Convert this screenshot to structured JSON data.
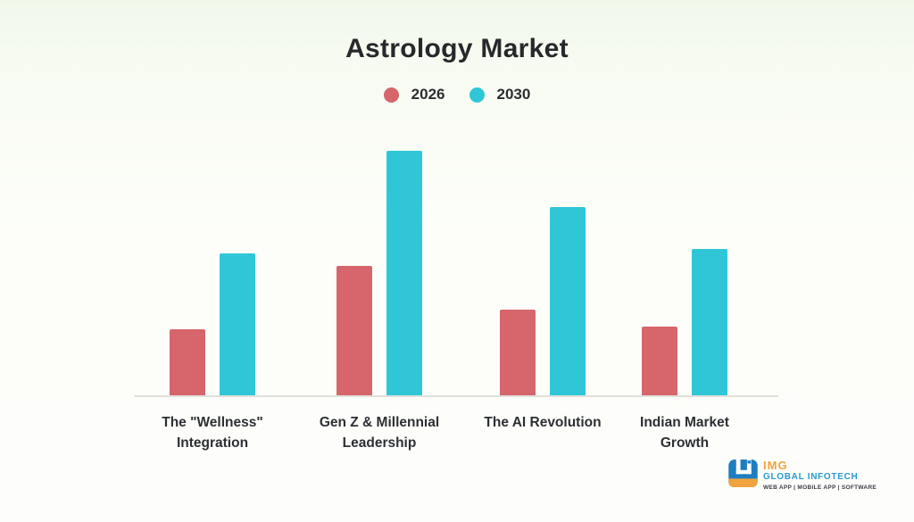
{
  "chart_data": {
    "type": "bar",
    "title": "Astrology Market",
    "xlabel": "",
    "ylabel": "",
    "ylim": [
      0,
      100
    ],
    "grid": false,
    "value_labels_visible": false,
    "values_are_relative_estimates": true,
    "legend_position": "top-center",
    "categories": [
      "The \"Wellness\" Integration",
      "Gen Z & Millennial Leadership",
      "The AI Revolution",
      "Indian Market Growth"
    ],
    "category_lines": [
      [
        "The \"Wellness\"",
        "Integration"
      ],
      [
        "Gen Z & Millennial",
        "Leadership"
      ],
      [
        "The AI Revolution"
      ],
      [
        "Indian Market",
        "Growth"
      ]
    ],
    "series": [
      {
        "name": "2026",
        "color": "#d6666c",
        "values": [
          27,
          53,
          35,
          28
        ]
      },
      {
        "name": "2030",
        "color": "#2fc7d8",
        "values": [
          58,
          100,
          77,
          60
        ]
      }
    ]
  },
  "colors": {
    "background_top": "#f1f8ea",
    "background_bottom": "#fdfdfb",
    "title_text": "#26282b",
    "axis_line": "#e0e0db",
    "series_2026": "#d6666c",
    "series_2030": "#2fc7d8"
  },
  "logo": {
    "name": "IMG",
    "subtitle": "GLOBAL INFOTECH",
    "tagline": "WEB APP | MOBILE APP | SOFTWARE",
    "colors": {
      "orange": "#f0a33e",
      "blue": "#2a9ad2",
      "dark": "#3a3a44"
    }
  }
}
